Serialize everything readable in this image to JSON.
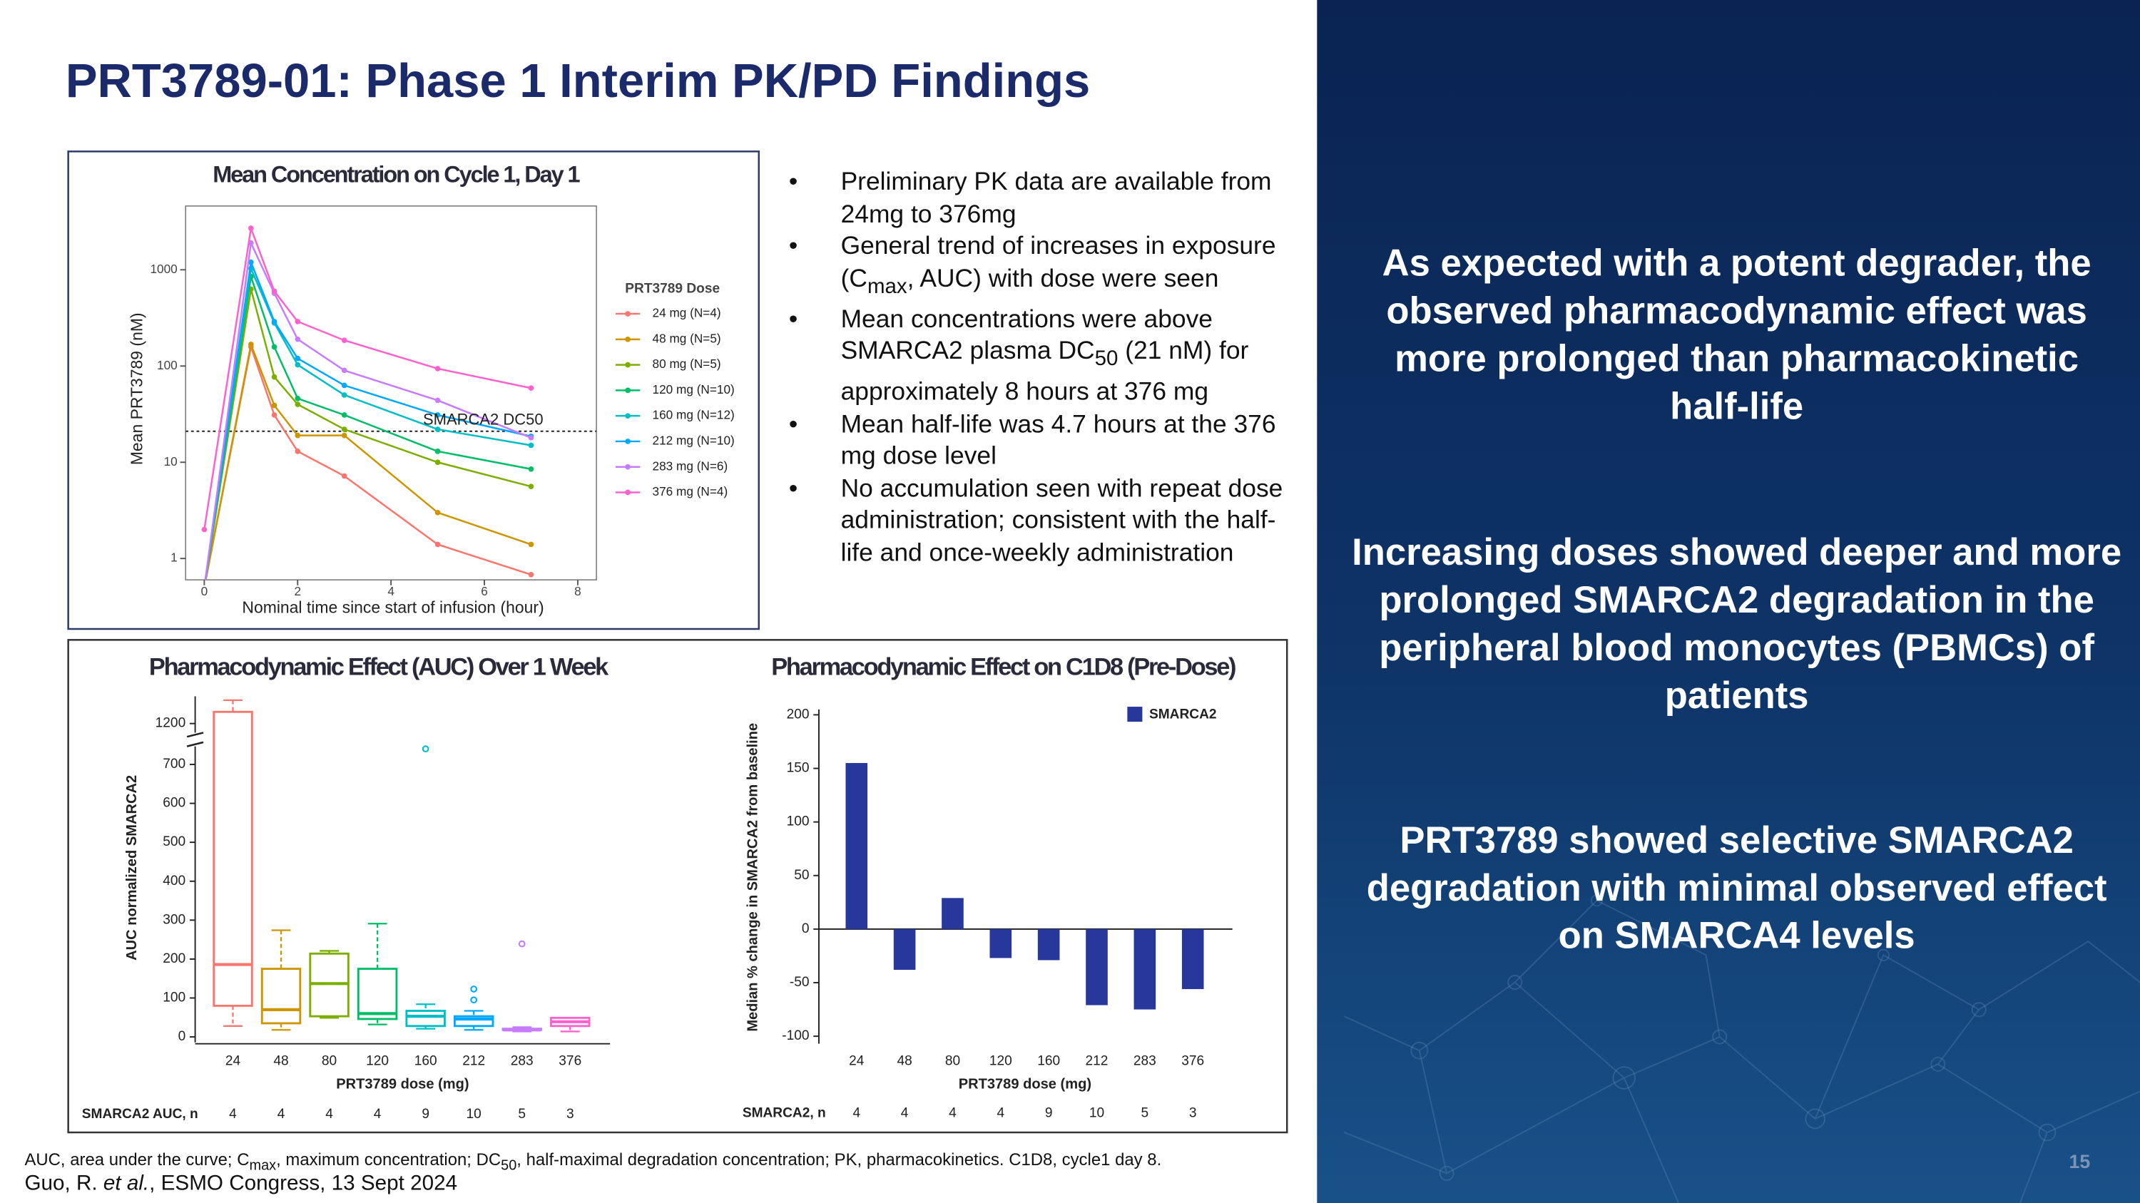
{
  "title": "PRT3789-01: Phase 1 Interim PK/PD Findings",
  "bullets": [
    [
      "Preliminary PK data are available from 24mg to 376mg"
    ],
    [
      "General trend of increases in exposure (C",
      "max",
      ", AUC) with dose were seen"
    ],
    [
      "Mean concentrations were above SMARCA2 plasma DC",
      "50",
      " (21 nM) for approximately 8 hours at 376 mg"
    ],
    [
      "Mean half-life was 4.7 hours at the 376 mg dose level"
    ],
    [
      "No accumulation seen with repeat dose administration; consistent with the half-life and once-weekly administration"
    ]
  ],
  "panel": [
    "As expected with a potent degrader, the observed pharmacodynamic effect was more prolonged than pharmacokinetic half-life",
    "Increasing doses showed deeper and more prolonged SMARCA2 degradation in the peripheral blood monocytes (PBMCs) of patients",
    "PRT3789 showed selective SMARCA2 degradation with minimal observed effect on SMARCA4 levels"
  ],
  "footnote": [
    "AUC, area under the curve; C",
    "max",
    ", maximum concentration; DC",
    "50",
    ", half-maximal degradation concentration; PK, pharmacokinetics. C1D8, cycle1 day 8."
  ],
  "citation": [
    "Guo, R. ",
    "et al.",
    ", ESMO Congress, 13 Sept 2024"
  ],
  "page_number": "15",
  "chart_data": [
    {
      "type": "line",
      "title": "Mean Concentration on Cycle 1, Day 1",
      "x_label": "Nominal time since start of infusion (hour)",
      "y_label": "Mean PRT3789 (nM)",
      "legend_title": "PRT3789 Dose",
      "log_y": true,
      "x": [
        0,
        1,
        1.5,
        2,
        3,
        5,
        7
      ],
      "xlim": [
        -0.4,
        8.4
      ],
      "xticks": [
        0,
        2,
        4,
        6,
        8
      ],
      "ylim": [
        0.6,
        4600
      ],
      "yticks": [
        1,
        10,
        100,
        1000
      ],
      "reference_line": 21,
      "reference_label": "SMARCA2 DC50",
      "series": [
        {
          "name": "24 mg (N=4)",
          "color": "#f8766d",
          "values": [
            0.5,
            158,
            31,
            13,
            7.2,
            1.4,
            0.68
          ]
        },
        {
          "name": "48 mg (N=5)",
          "color": "#cd9600",
          "values": [
            0.5,
            168,
            39,
            19,
            19,
            3,
            1.4
          ]
        },
        {
          "name": "80 mg (N=5)",
          "color": "#7cae00",
          "values": [
            0.5,
            630,
            77,
            40,
            22,
            10,
            5.6
          ]
        },
        {
          "name": "120 mg (N=10)",
          "color": "#00be67",
          "values": [
            0.5,
            850,
            158,
            46,
            31,
            13,
            8.5
          ]
        },
        {
          "name": "160 mg (N=12)",
          "color": "#00bfc4",
          "values": [
            0.5,
            1030,
            280,
            103,
            50,
            22,
            15
          ]
        },
        {
          "name": "212 mg (N=10)",
          "color": "#00a9ff",
          "values": [
            0.5,
            1200,
            290,
            120,
            63,
            31,
            18.6
          ]
        },
        {
          "name": "283 mg (N=6)",
          "color": "#c77cff",
          "values": [
            0.5,
            1900,
            570,
            190,
            90,
            44,
            18
          ]
        },
        {
          "name": "376 mg (N=4)",
          "color": "#ff61cc",
          "values": [
            2,
            2700,
            600,
            290,
            185,
            94,
            59
          ]
        }
      ]
    },
    {
      "type": "box",
      "title": "Pharmacodynamic Effect (AUC) Over 1 Week",
      "x_label": "PRT3789 dose (mg)",
      "y_label": "AUC normalized SMARCA2",
      "categories": [
        "24",
        "48",
        "80",
        "120",
        "160",
        "212",
        "283",
        "376"
      ],
      "colors": [
        "#f8766d",
        "#cd9600",
        "#7cae00",
        "#00be67",
        "#00bfc4",
        "#00a9ff",
        "#c77cff",
        "#ff61cc"
      ],
      "ylim": [
        0,
        1270
      ],
      "y_break": [
        750,
        1180
      ],
      "yticks": [
        0,
        100,
        200,
        300,
        400,
        500,
        600,
        700,
        1200
      ],
      "boxes": [
        {
          "min": 28,
          "q1": 80,
          "median": 186,
          "q3": 1230,
          "max": 1260,
          "outliers": []
        },
        {
          "min": 18,
          "q1": 35,
          "median": 70,
          "q3": 175,
          "max": 274,
          "outliers": []
        },
        {
          "min": 49,
          "q1": 53,
          "median": 137,
          "q3": 214,
          "max": 221,
          "outliers": []
        },
        {
          "min": 32,
          "q1": 46,
          "median": 60,
          "q3": 175,
          "max": 291,
          "outliers": []
        },
        {
          "min": 21,
          "q1": 28,
          "median": 53,
          "q3": 67,
          "max": 84,
          "outliers": [
            740
          ]
        },
        {
          "min": 18,
          "q1": 28,
          "median": 46,
          "q3": 53,
          "max": 67,
          "outliers": [
            123,
            95
          ]
        },
        {
          "min": 14,
          "q1": 18,
          "median": 18,
          "q3": 21,
          "max": 25,
          "outliers": [
            239
          ]
        },
        {
          "min": 14,
          "q1": 28,
          "median": 39,
          "q3": 49,
          "max": 49,
          "outliers": []
        }
      ],
      "count_label": "SMARCA2 AUC, n",
      "counts": [
        4,
        4,
        4,
        4,
        9,
        10,
        5,
        3
      ]
    },
    {
      "type": "bar",
      "title": "Pharmacodynamic Effect on C1D8 (Pre-Dose)",
      "x_label": "PRT3789 dose (mg)",
      "y_label": "Median % change in SMARCA2  from baseline",
      "categories": [
        "24",
        "48",
        "80",
        "120",
        "160",
        "212",
        "283",
        "376"
      ],
      "ylim": [
        -107,
        205
      ],
      "yticks": [
        -100,
        -50,
        0,
        50,
        100,
        150,
        200
      ],
      "series": [
        {
          "name": "SMARCA2",
          "color": "#27379b",
          "values": [
            155,
            -38,
            29,
            -27,
            -29,
            -71,
            -75,
            -56
          ]
        }
      ],
      "count_label": "SMARCA2, n",
      "counts": [
        4,
        4,
        4,
        4,
        9,
        10,
        5,
        3
      ]
    }
  ]
}
